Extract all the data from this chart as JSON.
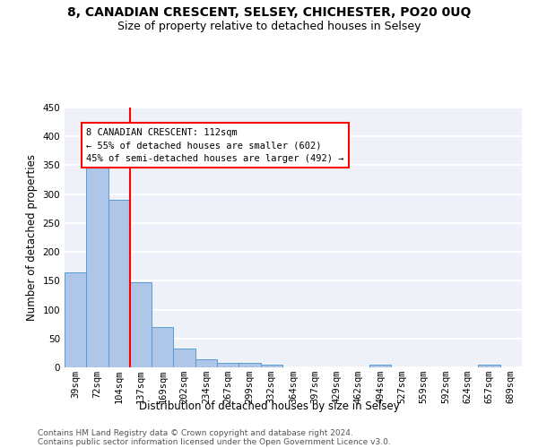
{
  "title": "8, CANADIAN CRESCENT, SELSEY, CHICHESTER, PO20 0UQ",
  "subtitle": "Size of property relative to detached houses in Selsey",
  "xlabel": "Distribution of detached houses by size in Selsey",
  "ylabel": "Number of detached properties",
  "categories": [
    "39sqm",
    "72sqm",
    "104sqm",
    "137sqm",
    "169sqm",
    "202sqm",
    "234sqm",
    "267sqm",
    "299sqm",
    "332sqm",
    "364sqm",
    "397sqm",
    "429sqm",
    "462sqm",
    "494sqm",
    "527sqm",
    "559sqm",
    "592sqm",
    "624sqm",
    "657sqm",
    "689sqm"
  ],
  "values": [
    165,
    375,
    290,
    147,
    70,
    33,
    14,
    7,
    7,
    5,
    0,
    0,
    0,
    0,
    4,
    0,
    0,
    0,
    0,
    4,
    0
  ],
  "bar_color": "#aec6e8",
  "bar_edge_color": "#5b9bd5",
  "redline_x": 2.5,
  "redline_label": "8 CANADIAN CRESCENT: 112sqm",
  "annotation_line1": "← 55% of detached houses are smaller (602)",
  "annotation_line2": "45% of semi-detached houses are larger (492) →",
  "annotation_box_color": "white",
  "annotation_box_edge_color": "red",
  "redline_color": "red",
  "ylim": [
    0,
    450
  ],
  "yticks": [
    0,
    50,
    100,
    150,
    200,
    250,
    300,
    350,
    400,
    450
  ],
  "background_color": "#eef2f8",
  "grid_color": "white",
  "footer1": "Contains HM Land Registry data © Crown copyright and database right 2024.",
  "footer2": "Contains public sector information licensed under the Open Government Licence v3.0.",
  "title_fontsize": 10,
  "subtitle_fontsize": 9,
  "xlabel_fontsize": 8.5,
  "ylabel_fontsize": 8.5,
  "tick_fontsize": 7.5,
  "annotation_fontsize": 7.5,
  "footer_fontsize": 6.5
}
